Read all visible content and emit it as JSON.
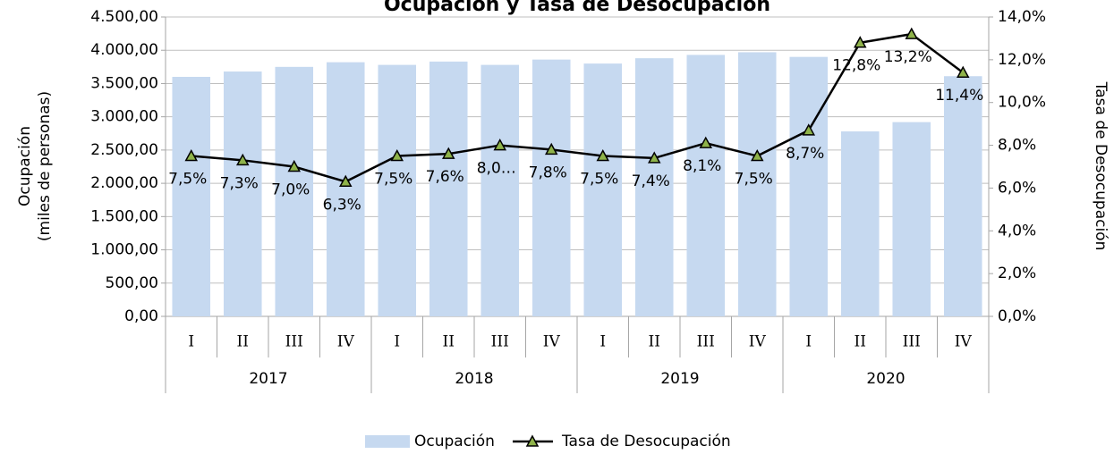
{
  "chart_data": {
    "type": "bar_line",
    "title": "Ocupación y Tasa de Desocupación",
    "ylabel": "Ocupación",
    "ylabel_sub": "(miles de personas)",
    "y2label": "Tasa de Desocupación",
    "categories": [
      "I",
      "II",
      "III",
      "IV",
      "I",
      "II",
      "III",
      "IV",
      "I",
      "II",
      "III",
      "IV",
      "I",
      "II",
      "III",
      "IV"
    ],
    "year_categories": [
      "2017",
      "2018",
      "2019",
      "2020"
    ],
    "series": [
      {
        "name": "Ocupación",
        "color": "#c6d9f0",
        "kind": "bar",
        "values": [
          3600,
          3680,
          3750,
          3820,
          3780,
          3830,
          3780,
          3860,
          3800,
          3880,
          3930,
          3970,
          3900,
          2780,
          2920,
          3610
        ]
      },
      {
        "name": "Tasa de Desocupación",
        "color": "#000000",
        "marker_color": "#8fb34a",
        "kind": "line",
        "axis": "y2",
        "values": [
          7.5,
          7.3,
          7.0,
          6.3,
          7.5,
          7.6,
          8.0,
          7.8,
          7.5,
          7.4,
          8.1,
          7.5,
          8.7,
          12.8,
          13.2,
          11.4
        ],
        "value_labels": [
          "7,5%",
          "7,3%",
          "7,0%",
          "6,3%",
          "7,5%",
          "7,6%",
          "8,0…",
          "7,8%",
          "7,5%",
          "7,4%",
          "8,1%",
          "7,5%",
          "8,7%",
          "12,8%",
          "13,2%",
          "11,4%"
        ]
      }
    ],
    "ylim": [
      0,
      4500
    ],
    "yticks": [
      {
        "value": 0,
        "label": "0,00"
      },
      {
        "value": 500,
        "label": "500,00"
      },
      {
        "value": 1000,
        "label": "1.000,00"
      },
      {
        "value": 1500,
        "label": "1.500,00"
      },
      {
        "value": 2000,
        "label": "2.000,00"
      },
      {
        "value": 2500,
        "label": "2.500,00"
      },
      {
        "value": 3000,
        "label": "3.000,00"
      },
      {
        "value": 3500,
        "label": "3.500,00"
      },
      {
        "value": 4000,
        "label": "4.000,00"
      },
      {
        "value": 4500,
        "label": "4.500,00"
      }
    ],
    "y2lim": [
      0,
      14
    ],
    "y2ticks": [
      {
        "value": 0,
        "label": "0,0%"
      },
      {
        "value": 2,
        "label": "2,0%"
      },
      {
        "value": 4,
        "label": "4,0%"
      },
      {
        "value": 6,
        "label": "6,0%"
      },
      {
        "value": 8,
        "label": "8,0%"
      },
      {
        "value": 10,
        "label": "10,0%"
      },
      {
        "value": 12,
        "label": "12,0%"
      },
      {
        "value": 14,
        "label": "14,0%"
      }
    ],
    "grid": true
  }
}
